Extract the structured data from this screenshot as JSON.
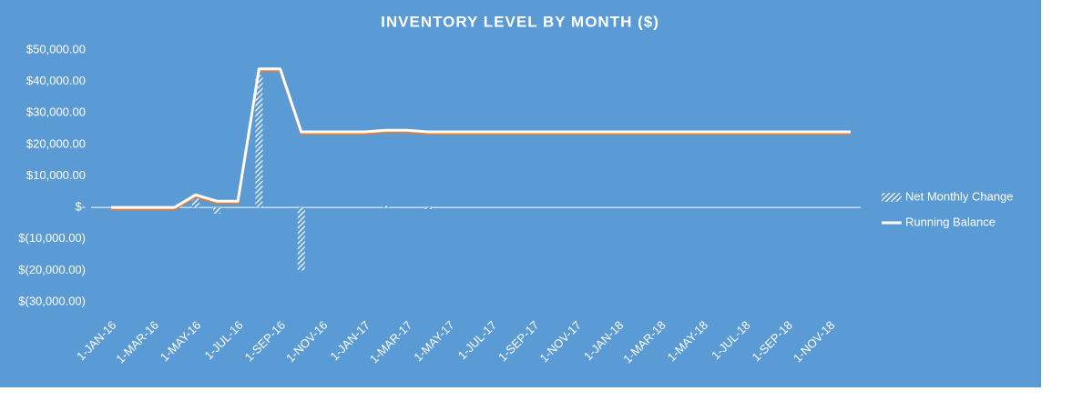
{
  "chart_data": {
    "type": "combo",
    "title": "INVENTORY LEVEL BY MONTH ($)",
    "categories": [
      "1-JAN-16",
      null,
      "1-MAR-16",
      null,
      "1-MAY-16",
      null,
      "1-JUL-16",
      null,
      "1-SEP-16",
      null,
      "1-NOV-16",
      null,
      "1-JAN-17",
      null,
      "1-MAR-17",
      null,
      "1-MAY-17",
      null,
      "1-JUL-17",
      null,
      "1-SEP-17",
      null,
      "1-NOV-17",
      null,
      "1-JAN-18",
      null,
      "1-MAR-18",
      null,
      "1-MAY-18",
      null,
      "1-JUL-18",
      null,
      "1-SEP-18",
      null,
      "1-NOV-18",
      null
    ],
    "series": [
      {
        "name": "Net Monthly Change",
        "type": "bar",
        "color": "#ffffff",
        "values": [
          0,
          0,
          0,
          0,
          4000,
          -2000,
          0,
          42000,
          0,
          -20000,
          0,
          0,
          0,
          500,
          0,
          -500,
          0,
          0,
          0,
          0,
          0,
          0,
          0,
          0,
          0,
          0,
          0,
          0,
          0,
          0,
          0,
          0,
          0,
          0,
          0,
          0
        ]
      },
      {
        "name": "Running Balance",
        "type": "line",
        "color": "#ffffff",
        "values": [
          0,
          0,
          0,
          0,
          4000,
          2000,
          2000,
          44000,
          44000,
          24000,
          24000,
          24000,
          24000,
          24500,
          24500,
          24000,
          24000,
          24000,
          24000,
          24000,
          24000,
          24000,
          24000,
          24000,
          24000,
          24000,
          24000,
          24000,
          24000,
          24000,
          24000,
          24000,
          24000,
          24000,
          24000,
          24000
        ]
      }
    ],
    "ylim": [
      -30000,
      50000
    ],
    "yticks": [
      {
        "value": -30000,
        "label": "$(30,000.00)"
      },
      {
        "value": -20000,
        "label": "$(20,000.00)"
      },
      {
        "value": -10000,
        "label": "$(10,000.00)"
      },
      {
        "value": 0,
        "label": "$-"
      },
      {
        "value": 10000,
        "label": "$10,000.00"
      },
      {
        "value": 20000,
        "label": "$20,000.00"
      },
      {
        "value": 30000,
        "label": "$30,000.00"
      },
      {
        "value": 40000,
        "label": "$40,000.00"
      },
      {
        "value": 50000,
        "label": "$50,000.00"
      }
    ],
    "grid": false,
    "legend": "right"
  }
}
